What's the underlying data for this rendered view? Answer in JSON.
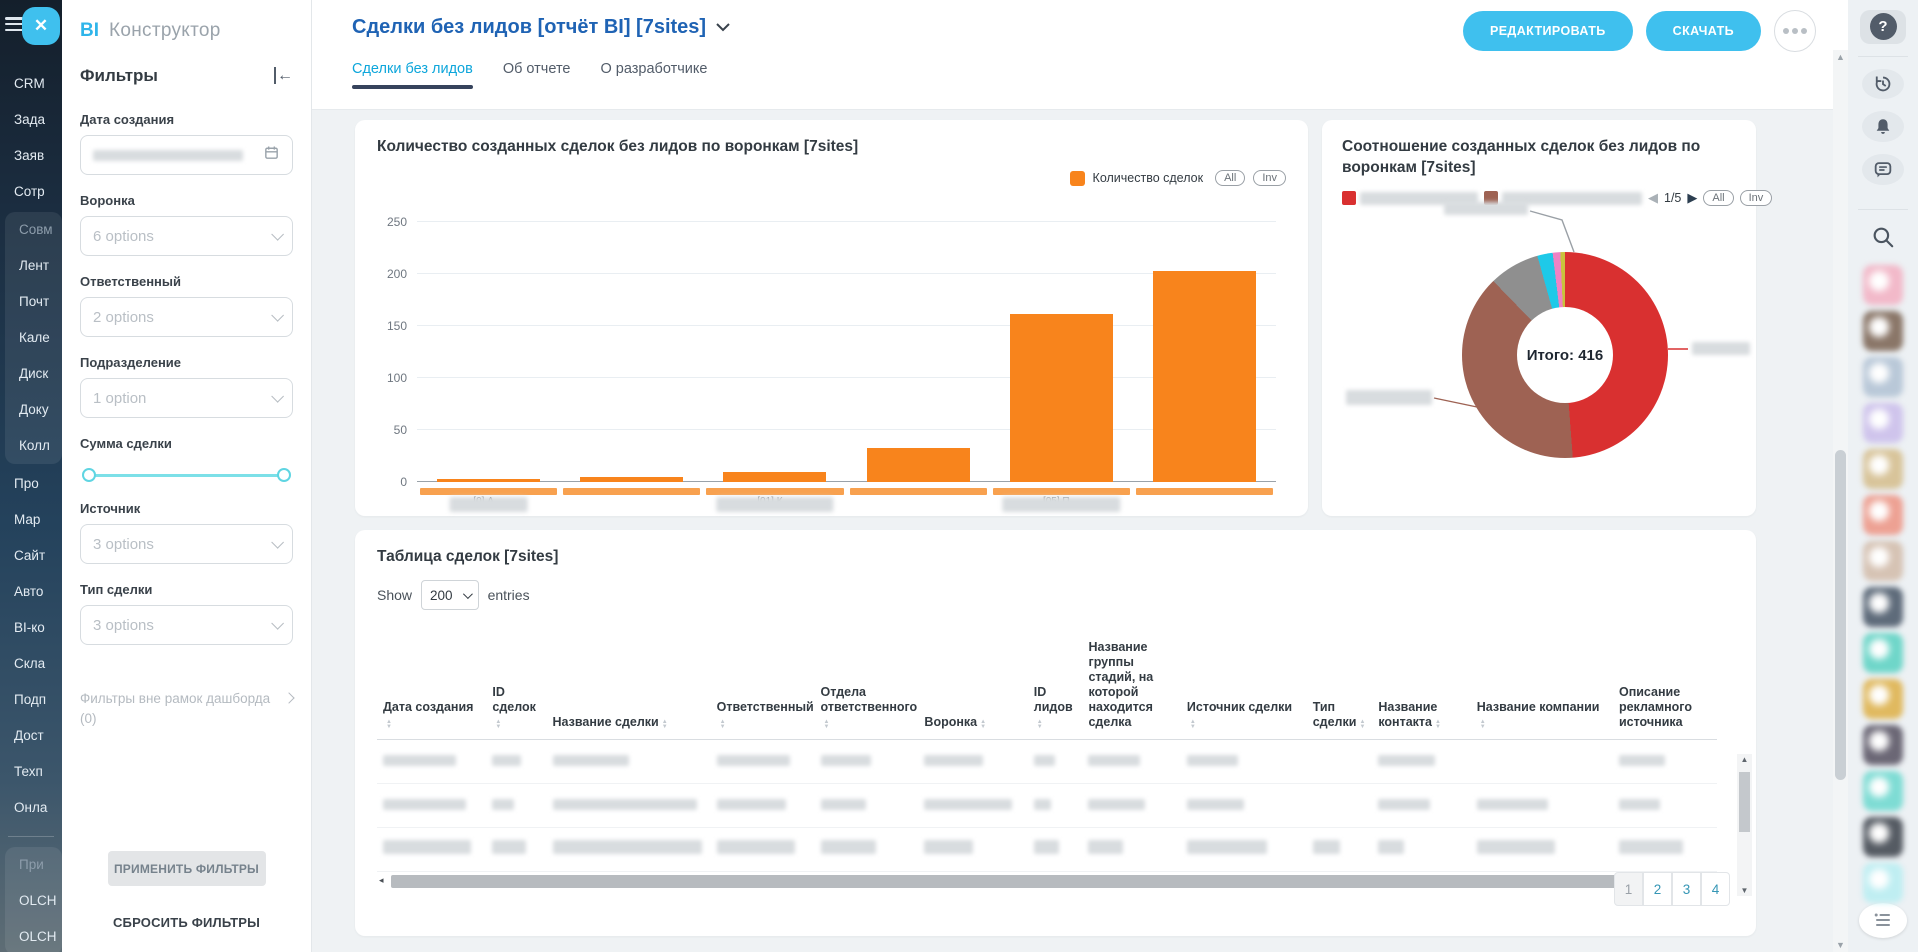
{
  "logo": {
    "bi": "BI",
    "name": "Конструктор"
  },
  "nav_sidebar": {
    "items": [
      {
        "label": "CRM"
      },
      {
        "label": "Зада"
      },
      {
        "label": "Заяв"
      },
      {
        "label": "Сотр"
      },
      {
        "label": "Совм",
        "muted": true
      },
      {
        "label": "Лент"
      },
      {
        "label": "Почт"
      },
      {
        "label": "Кале"
      },
      {
        "label": "Диск"
      },
      {
        "label": "Доку"
      },
      {
        "label": "Колл"
      },
      {
        "label": "Про"
      },
      {
        "label": "Мар"
      },
      {
        "label": "Сайт"
      },
      {
        "label": "Авто"
      },
      {
        "label": "BI-ко"
      },
      {
        "label": "Скла"
      },
      {
        "label": "Подп"
      },
      {
        "label": "Дост"
      },
      {
        "label": "Техп"
      },
      {
        "label": "Онла"
      },
      {
        "label": "При",
        "muted": true
      },
      {
        "label": "OLCH"
      },
      {
        "label": "OLCH"
      }
    ]
  },
  "header": {
    "title": "Сделки без лидов [отчёт BI] [7sites]",
    "edit_label": "РЕДАКТИРОВАТЬ",
    "download_label": "СКАЧАТЬ"
  },
  "tabs": [
    {
      "label": "Сделки без лидов",
      "active": true
    },
    {
      "label": "Об отчете"
    },
    {
      "label": "О разработчике"
    }
  ],
  "filters": {
    "title": "Фильтры",
    "fields": [
      {
        "label": "Дата создания",
        "type": "date",
        "value_censored": true
      },
      {
        "label": "Воронка",
        "value": "6 options"
      },
      {
        "label": "Ответственный",
        "value": "2 options"
      },
      {
        "label": "Подразделение",
        "value": "1 option"
      },
      {
        "label": "Сумма сделки",
        "type": "slider"
      },
      {
        "label": "Источник",
        "value": "3 options"
      },
      {
        "label": "Тип сделки",
        "value": "3 options"
      }
    ],
    "outer_filters_label": "Фильтры вне рамок дашборда",
    "outer_filters_count": "(0)",
    "apply_label": "ПРИМЕНИТЬ ФИЛЬТРЫ",
    "reset_label": "СБРОСИТЬ ФИЛЬТРЫ"
  },
  "chart_data": [
    {
      "type": "bar",
      "title": "Количество созданных сделок без лидов по воронкам [7sites]",
      "legend": "Количество сделок",
      "legend_color": "#f8841c",
      "buttons": [
        "All",
        "Inv"
      ],
      "categories": [
        "[0] А…",
        "",
        "[01] К…",
        "",
        "[05] П…",
        ""
      ],
      "categories_censored": true,
      "values": [
        3,
        5,
        10,
        33,
        162,
        203
      ],
      "ylabel": "",
      "xlabel": "",
      "ylim": [
        0,
        250
      ],
      "yticks": [
        0,
        50,
        100,
        150,
        200,
        250
      ],
      "grid": true,
      "legend_position": "top-right"
    },
    {
      "type": "pie",
      "subtype": "donut",
      "title": "Соотношение созданных сделок без лидов по воронкам [7sites]",
      "center_label": "Итого: 416",
      "total": 416,
      "values": [
        203,
        162,
        33,
        10,
        5,
        3
      ],
      "colors": [
        "#d93030",
        "#9e6253",
        "#8f8f8f",
        "#1ec9e8",
        "#ef82c4",
        "#c9c23c"
      ],
      "labels_censored": true,
      "legend_swatches": [
        "#d93030",
        "#9e6253"
      ],
      "pager": "1/5",
      "pager_prev": "◀",
      "pager_next": "▶",
      "buttons": [
        "All",
        "Inv"
      ]
    }
  ],
  "table": {
    "title": "Таблица сделок [7sites]",
    "show_label": "Show",
    "entries_label": "entries",
    "page_size": "200",
    "columns": [
      "Дата создания",
      "ID сделок",
      "Название сделки",
      "Ответственный",
      "Отдела ответственного",
      "Воронка",
      "ID лидов",
      "Название группы стадий, на которой находится сделка",
      "Источник сделки",
      "Тип сделки",
      "Название контакта",
      "Название компании",
      "Описание рекламного источника"
    ],
    "rows_censored": 3,
    "pagination": [
      "1",
      "2",
      "3",
      "4"
    ]
  },
  "right_rail": {
    "help_label": "?",
    "icons": [
      "history-icon",
      "bell-icon",
      "chat-icon",
      "search-icon"
    ],
    "avatar_colors": [
      "#f2b9c9",
      "#8a7668",
      "#b9c8d8",
      "#cfc4ec",
      "#d8c49a",
      "#eda193",
      "#d6c3b4",
      "#5e6b7a",
      "#6fd6c9",
      "#e0b95f",
      "#6b6775",
      "#7edcd4",
      "#555b63",
      "#bfeef2"
    ]
  },
  "theme": {
    "accent_cyan": "#3fc0ee",
    "title_blue": "#1f63b4",
    "tab_active": "#0da6db",
    "bar_orange": "#f8841c"
  }
}
